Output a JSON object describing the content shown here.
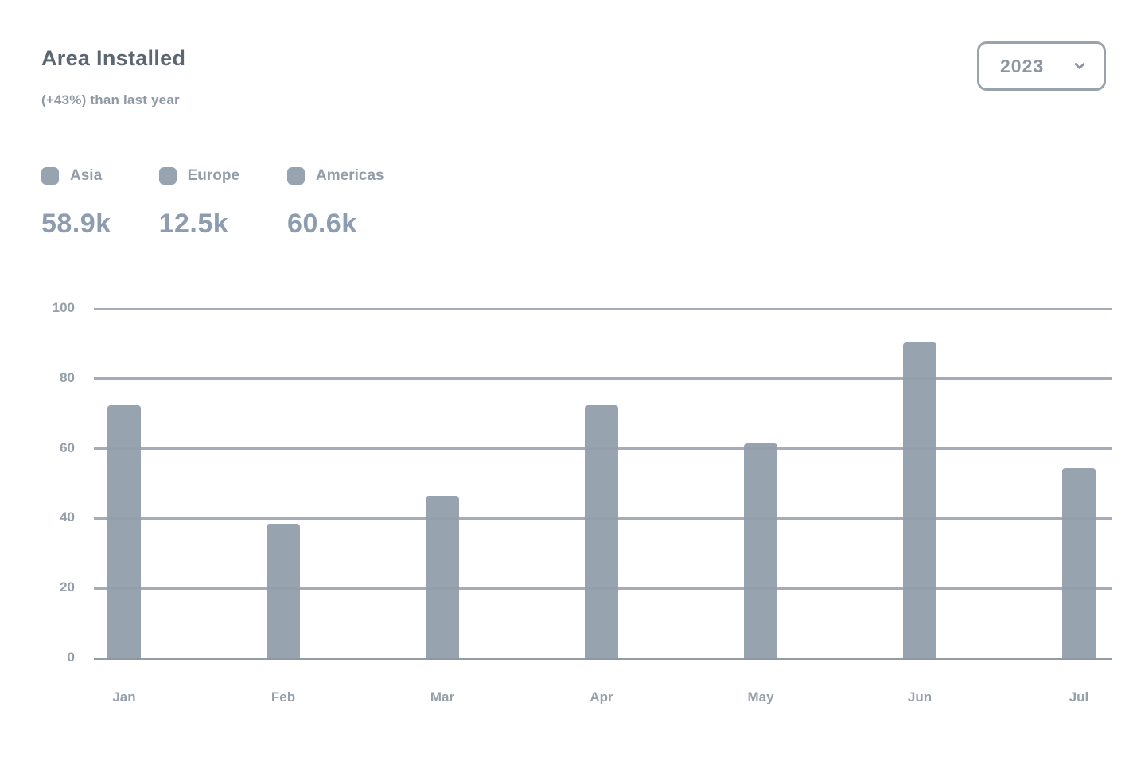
{
  "header": {
    "title": "Area Installed",
    "subtitle": "(+43%) than last year",
    "year_select": {
      "value": "2023",
      "icon": "chevron-down-icon"
    }
  },
  "legend": {
    "items": [
      {
        "label": "Asia",
        "total": "58.9k",
        "color": "#98a3b0"
      },
      {
        "label": "Europe",
        "total": "12.5k",
        "color": "#98a3b0"
      },
      {
        "label": "Americas",
        "total": "60.6k",
        "color": "#98a3b0"
      }
    ]
  },
  "chart_data": {
    "type": "bar",
    "title": "Area Installed",
    "categories": [
      "Jan",
      "Feb",
      "Mar",
      "Apr",
      "May",
      "Jun",
      "Jul"
    ],
    "values": [
      73,
      39,
      47,
      73,
      62,
      91,
      55
    ],
    "xlabel": "",
    "ylabel": "",
    "ylim": [
      0,
      100
    ],
    "yticks": [
      0,
      20,
      40,
      60,
      80,
      100
    ],
    "grid": true,
    "legend_position": "top-left",
    "bar_color": "#98a3b0",
    "gridline_color": "#949faa",
    "axis_label_color": "#96a0ab"
  }
}
